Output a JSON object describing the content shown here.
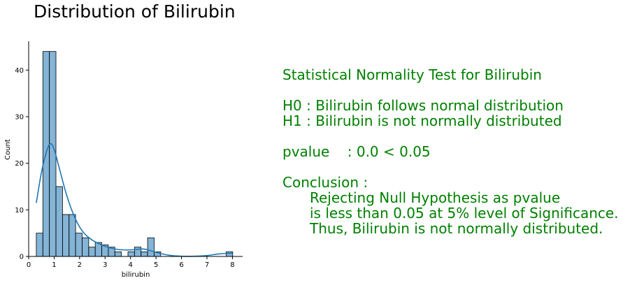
{
  "figure_title": "Distribution of Bilirubin",
  "stats": {
    "heading": "Statistical Normality Test for Bilirubin",
    "h0": "H0 : Bilirubin follows normal distribution",
    "h1": "H1 : Bilirubin is not normally distributed",
    "pvalue": "pvalue    : 0.0 < 0.05",
    "conclusion_label": "Conclusion :",
    "conclusion_lines": [
      "Rejecting Null Hypothesis as pvalue",
      "is less than 0.05 at 5% level of Significance.",
      "Thus, Bilirubin is not normally distributed."
    ]
  },
  "chart_data": {
    "type": "histogram",
    "xlabel": "bilirubin",
    "ylabel": "Count",
    "xlim": [
      0,
      8.4
    ],
    "ylim": [
      0,
      46.2
    ],
    "xticks": [
      0,
      1,
      2,
      3,
      4,
      5,
      6,
      7,
      8
    ],
    "yticks": [
      0,
      10,
      20,
      30,
      40
    ],
    "bin_start": 0.3,
    "bin_width": 0.257,
    "counts": [
      5,
      44,
      44,
      15,
      9,
      9,
      5,
      4,
      2,
      3,
      2.5,
      2,
      1,
      0,
      1,
      2,
      1,
      4,
      1,
      0,
      0,
      0,
      0,
      0,
      0,
      0,
      0,
      0,
      0,
      1
    ],
    "bar_color": "#1f77b4",
    "kde_color": "#1f77b4",
    "kde": {
      "x": [
        0.3,
        0.5,
        0.7,
        0.85,
        1.0,
        1.2,
        1.5,
        1.8,
        2.1,
        2.5,
        3.0,
        3.5,
        4.0,
        4.5,
        4.8,
        5.2,
        5.6,
        6.0,
        6.5,
        7.0,
        7.5,
        8.0
      ],
      "y": [
        11.5,
        18,
        22.5,
        24.2,
        23,
        19,
        13,
        8.5,
        5.5,
        3.5,
        2.2,
        1.5,
        1.4,
        1.6,
        1.2,
        0.6,
        0.2,
        0.05,
        0.05,
        0.2,
        0.55,
        0.7
      ]
    }
  }
}
